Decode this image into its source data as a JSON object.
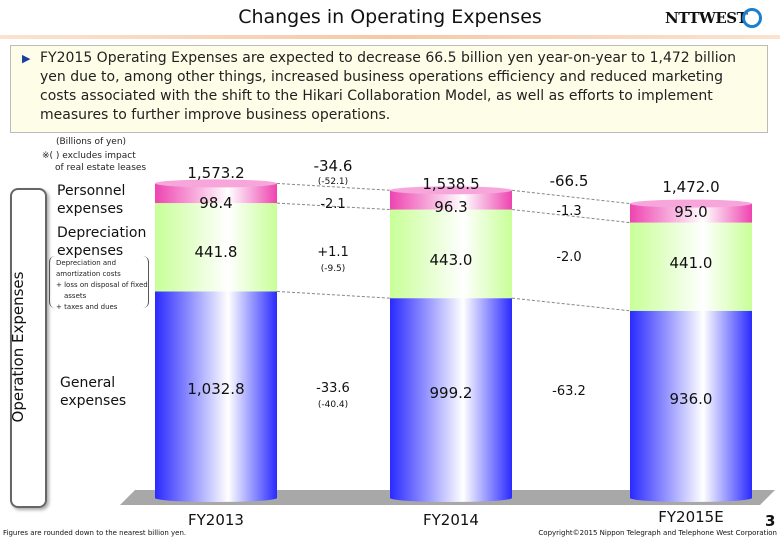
{
  "title": "Changes in Operating Expenses",
  "logo": "NTTWEST",
  "summary": "FY2015 Operating Expenses are expected to decrease 66.5 billion yen year-on-year to 1,472 billion yen due to, among other things, increased business operations efficiency and reduced marketing costs associated with the shift to the Hikari Collaboration Model, as well as efforts to implement measures to further improve business operations.",
  "notes": {
    "unit": "(Billions of yen)",
    "excl1": "※(  ) excludes impact",
    "excl2": "of real estate leases"
  },
  "side_label": "Operation Expenses",
  "legend": {
    "personnel": [
      "Personnel",
      "expenses"
    ],
    "depreciation": [
      "Depreciation",
      "expenses"
    ],
    "general": [
      "General",
      "expenses"
    ],
    "dep_detail": [
      "Depreciation and",
      "amortization costs",
      "+ loss on disposal of fixed",
      "assets",
      "+ taxes and dues"
    ]
  },
  "chart_data": {
    "type": "bar",
    "stacked": true,
    "categories": [
      "FY2013",
      "FY2014",
      "FY2015E"
    ],
    "series": [
      {
        "name": "General expenses",
        "values": [
          1032.8,
          999.2,
          936.0
        ],
        "color": "#3333ff"
      },
      {
        "name": "Depreciation expenses",
        "values": [
          441.8,
          443.0,
          441.0
        ],
        "color": "#ccff99"
      },
      {
        "name": "Personnel expenses",
        "values": [
          98.4,
          96.3,
          95.0
        ],
        "color": "#ee55bb"
      }
    ],
    "totals": [
      "1,573.2",
      "1,538.5",
      "1,472.0"
    ],
    "labels": {
      "general": [
        "1,032.8",
        "999.2",
        "936.0"
      ],
      "depreciation": [
        "441.8",
        "443.0",
        "441.0"
      ],
      "personnel": [
        "98.4",
        "96.3",
        "95.0"
      ]
    },
    "changes": [
      {
        "total": "-34.6",
        "total_excl": "(-52.1)",
        "personnel": "-2.1",
        "depreciation": "+1.1",
        "depreciation_excl": "(-9.5)",
        "general": "-33.6",
        "general_excl": "(-40.4)"
      },
      {
        "total": "-66.5",
        "personnel": "-1.3",
        "depreciation": "-2.0",
        "general": "-63.2"
      }
    ]
  },
  "footer": {
    "note": "Figures are rounded down to the nearest billion yen.",
    "copyright": "Copyright©2015 Nippon Telegraph and Telephone West Corporation",
    "page": "3"
  }
}
